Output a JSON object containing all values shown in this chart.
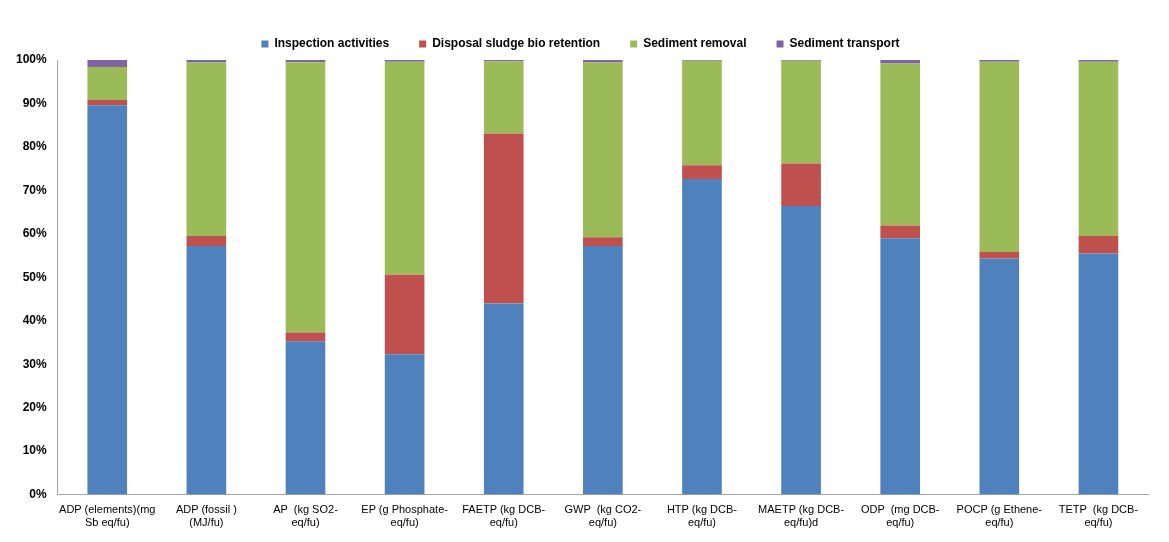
{
  "chart_data": {
    "type": "bar",
    "stacked": true,
    "legend": "top",
    "grid": false,
    "categories": [
      "ADP (elements)(mg Sb eq/fu)",
      "ADP (fossil ) (MJ/fu)",
      "AP  (kg SO2-eq/fu)",
      "EP (g Phosphate-eq/fu)",
      "FAETP (kg DCB-eq/fu)",
      "GWP  (kg CO2-eq/fu)",
      "HTP (kg DCB-eq/fu)",
      "MAETP (kg DCB-eq/fu)d",
      "ODP  (mg DCB-eq/fu)",
      "POCP (g Ethene-eq/fu)",
      "TETP  (kg DCB-eq/fu)"
    ],
    "series": [
      {
        "name": "Inspection activities",
        "color": "#4f81bd",
        "values": [
          89.6,
          57.2,
          35.3,
          32.3,
          44.0,
          57.2,
          72.6,
          66.4,
          59.0,
          54.3,
          55.5
        ]
      },
      {
        "name": "Disposal sludge bio retention",
        "color": "#c0504d",
        "values": [
          1.2,
          2.3,
          2.0,
          18.3,
          39.1,
          2.0,
          3.2,
          9.8,
          2.9,
          1.5,
          4.0
        ]
      },
      {
        "name": "Sediment removal",
        "color": "#9bbb59",
        "values": [
          7.6,
          39.9,
          62.2,
          49.0,
          16.6,
          40.2,
          24.0,
          23.6,
          37.3,
          43.8,
          40.1
        ]
      },
      {
        "name": "Sediment transport",
        "color": "#8064a2",
        "values": [
          1.6,
          0.6,
          0.5,
          0.4,
          0.3,
          0.6,
          0.2,
          0.2,
          0.8,
          0.4,
          0.4
        ]
      }
    ],
    "ylim": [
      0,
      100
    ],
    "yticks": [
      {
        "value": 0,
        "label": "0%"
      },
      {
        "value": 10,
        "label": "10%"
      },
      {
        "value": 20,
        "label": "20%"
      },
      {
        "value": 30,
        "label": "30%"
      },
      {
        "value": 40,
        "label": "40%"
      },
      {
        "value": 50,
        "label": "50%"
      },
      {
        "value": 60,
        "label": "60%"
      },
      {
        "value": 70,
        "label": "70%"
      },
      {
        "value": 80,
        "label": "80%"
      },
      {
        "value": 90,
        "label": "90%"
      },
      {
        "value": 100,
        "label": "100%"
      }
    ]
  }
}
